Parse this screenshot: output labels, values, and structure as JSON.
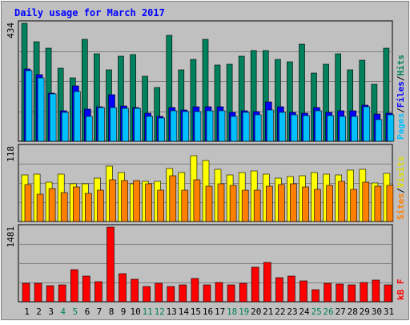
{
  "chart_data": {
    "type": "bar",
    "title": "Daily usage for March 2017",
    "x": [
      1,
      2,
      3,
      4,
      5,
      6,
      7,
      8,
      9,
      10,
      11,
      12,
      13,
      14,
      15,
      16,
      17,
      18,
      19,
      20,
      21,
      22,
      23,
      24,
      25,
      26,
      27,
      28,
      29,
      30,
      31
    ],
    "weekend_days": [
      4,
      5,
      11,
      12,
      18,
      19,
      25,
      26
    ],
    "panels": [
      {
        "id": "top",
        "ymax": 434,
        "ymax_label": "434",
        "right_label": [
          "Pages",
          "/",
          "Files",
          "/",
          "Hits"
        ],
        "series": [
          {
            "name": "Hits",
            "color": "#00805c",
            "values": [
              434,
              366,
              341,
              268,
              233,
              375,
              323,
              262,
              314,
              320,
              240,
              197,
              390,
              263,
              301,
              375,
              281,
              282,
              312,
              333,
              333,
              300,
              291,
              358,
              252,
              282,
              321,
              262,
              298,
              211,
              342
            ]
          },
          {
            "name": "Files",
            "color": "#0000ff",
            "values": [
              265,
              245,
              177,
              113,
              204,
              119,
              126,
              170,
              129,
              124,
              103,
              92,
              125,
              115,
              126,
              127,
              126,
              105,
              113,
              110,
              145,
              126,
              107,
              104,
              124,
              107,
              111,
              111,
              133,
              100,
              104
            ]
          },
          {
            "name": "Pages",
            "color": "#00c0ff",
            "values": [
              259,
              233,
              175,
              106,
              182,
              91,
              123,
              124,
              121,
              121,
              91,
              86,
              111,
              109,
              108,
              111,
              113,
              91,
              107,
              98,
              116,
              107,
              97,
              95,
              112,
              93,
              92,
              92,
              126,
              80,
              98
            ]
          }
        ]
      },
      {
        "id": "mid",
        "ymax": 118,
        "ymax_label": "118",
        "right_label": [
          "Sites",
          "/",
          "Visits"
        ],
        "series": [
          {
            "name": "Visits",
            "color": "#ffff00",
            "values": [
              74,
              75,
              62,
              75,
              60,
              59,
              68,
              88,
              78,
              59,
              64,
              64,
              84,
              78,
              104,
              96,
              83,
              74,
              78,
              80,
              75,
              69,
              71,
              72,
              78,
              75,
              73,
              81,
              83,
              61,
              76
            ]
          },
          {
            "name": "Sites",
            "color": "#ff8000",
            "values": [
              58,
              43,
              52,
              46,
              55,
              45,
              49,
              66,
              65,
              65,
              59,
              50,
              72,
              49,
              66,
              56,
              59,
              57,
              49,
              50,
              56,
              58,
              59,
              55,
              51,
              57,
              64,
              51,
              62,
              56,
              57
            ]
          }
        ]
      },
      {
        "id": "bottom",
        "ymax": 1481,
        "ymax_label": "1481",
        "right_label": [
          "kB",
          "F"
        ],
        "series": [
          {
            "name": "kB F",
            "color": "#ff0000",
            "values": [
              361,
              362,
              326,
              340,
              632,
              514,
              395,
              1481,
              564,
              452,
              304,
              370,
              301,
              342,
              460,
              332,
              384,
              339,
              363,
              690,
              775,
              470,
              512,
              412,
              245,
              365,
              358,
              341,
              387,
              424,
              329
            ]
          }
        ]
      }
    ],
    "grid": true,
    "colors": {
      "plot_bg": "#c0c0c0",
      "frame": "#000000",
      "title_text": "#0000ff",
      "label_text": "#000000",
      "weekend_text": "#00805c",
      "gridline": "#808080"
    }
  }
}
